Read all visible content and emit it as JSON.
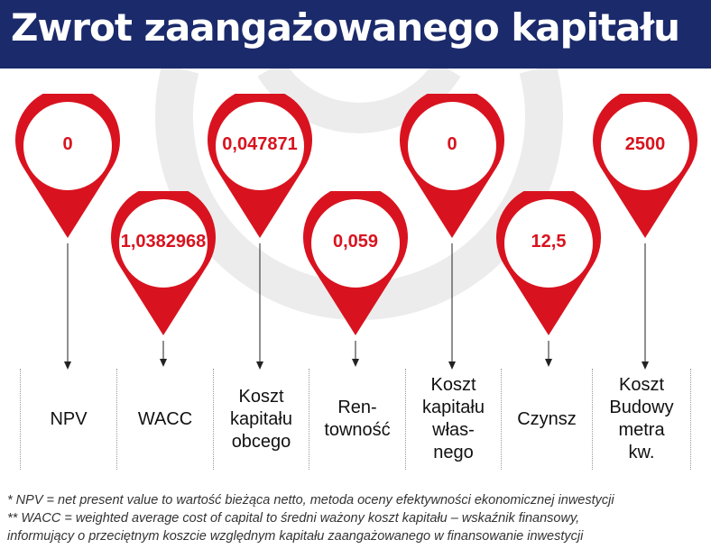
{
  "header": {
    "title": "Zwrot zaangażowanego kapitału",
    "background": "#1b2a6b"
  },
  "accent_color": "#d8131f",
  "metrics": [
    {
      "value": "0",
      "label": "NPV"
    },
    {
      "value": "1,0382968",
      "label": "WACC"
    },
    {
      "value": "0,047871",
      "label": "Koszt\nkapitału\nobcego"
    },
    {
      "value": "0,059",
      "label": "Ren-\ntowność"
    },
    {
      "value": "0",
      "label": "Koszt\nkapitału\nwłas-\nnego"
    },
    {
      "value": "12,5",
      "label": "Czynsz"
    },
    {
      "value": "2500",
      "label": "Koszt\nBudowy\nmetra\nkw."
    }
  ],
  "footnotes": [
    "* NPV = net present value to wartość bieżąca netto, metoda oceny efektywności ekonomicznej inwestycji",
    "** WACC = weighted average cost of capital to średni ważony koszt kapitału – wskaźnik finansowy,",
    "informujący o przeciętnym koszcie względnym kapitału zaangażowanego w finansowanie inwestycji"
  ]
}
